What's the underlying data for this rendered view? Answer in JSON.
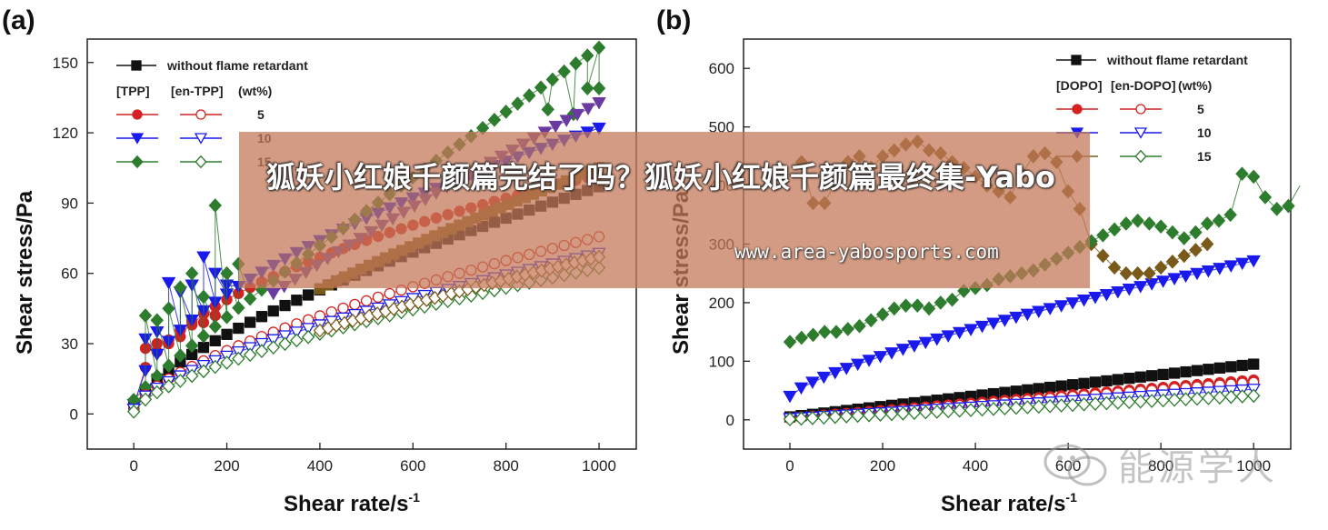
{
  "banner": {
    "title": "狐妖小红娘千颜篇完结了吗？狐妖小红娘千颜篇最终集-Yabo",
    "url": "www.area-yabosports.com"
  },
  "watermark": {
    "text": "能源学人",
    "icon": "wechat-icon"
  },
  "colors": {
    "black": "#111111",
    "red": "#d42020",
    "blue": "#1a1aee",
    "green": "#2e7d2e",
    "brown": "#7a5a1a",
    "banner": "#c47858"
  },
  "chart_data": [
    {
      "type": "scatter",
      "panel": "(a)",
      "xlabel": "Shear rate/s",
      "xlabel_sup": "-1",
      "ylabel": "Shear stress/Pa",
      "xlim": [
        -100,
        1080
      ],
      "ylim": [
        -15,
        160
      ],
      "xticks": [
        0,
        200,
        400,
        600,
        800,
        1000
      ],
      "yticks": [
        0,
        30,
        60,
        90,
        120,
        150
      ],
      "legend": {
        "placement": "top-left",
        "base_label": "without flame retardant",
        "headers": [
          "[TPP]",
          "[en-TPP]",
          "(wt%)"
        ],
        "rows": [
          "5",
          "10",
          "15"
        ]
      },
      "series": [
        {
          "name": "without flame retardant",
          "color": "#111111",
          "marker": "square",
          "fill": true,
          "model": {
            "type": "power",
            "a": 0.8,
            "b": 0.69,
            "y0": 3
          },
          "n": 40
        },
        {
          "name": "TPP 5",
          "color": "#d42020",
          "marker": "circle",
          "fill": true,
          "model": {
            "type": "power",
            "a": 3.6,
            "b": 0.48,
            "y0": 3
          },
          "n": 40,
          "extra": [
            [
              25,
              28
            ],
            [
              50,
              30
            ],
            [
              75,
              30
            ],
            [
              100,
              33
            ],
            [
              125,
              38
            ],
            [
              150,
              39
            ],
            [
              175,
              42
            ]
          ]
        },
        {
          "name": "TPP 10",
          "color": "#1a1aee",
          "marker": "tri-down",
          "fill": true,
          "model": {
            "type": "power",
            "a": 2.3,
            "b": 0.57,
            "y0": 4
          },
          "n": 40,
          "extra": [
            [
              25,
              32
            ],
            [
              50,
              35
            ],
            [
              75,
              56
            ],
            [
              100,
              52
            ],
            [
              125,
              55
            ],
            [
              150,
              67
            ],
            [
              175,
              60
            ],
            [
              200,
              55
            ]
          ]
        },
        {
          "name": "TPP 15",
          "color": "#2e7d2e",
          "marker": "diamond",
          "fill": true,
          "model": {
            "type": "power",
            "a": 0.3,
            "b": 0.9,
            "y0": 6
          },
          "n": 40,
          "extra": [
            [
              25,
              42
            ],
            [
              50,
              40
            ],
            [
              75,
              45
            ],
            [
              100,
              54
            ],
            [
              125,
              60
            ],
            [
              150,
              50
            ],
            [
              175,
              89
            ],
            [
              200,
              60
            ],
            [
              225,
              64
            ],
            [
              890,
              130
            ],
            [
              945,
              128
            ],
            [
              975,
              139
            ],
            [
              1000,
              139
            ]
          ]
        },
        {
          "name": "en-TPP 5",
          "color": "#d42020",
          "marker": "circle",
          "fill": false,
          "model": {
            "type": "power",
            "a": 0.72,
            "b": 0.67,
            "y0": 2
          },
          "n": 40
        },
        {
          "name": "en-TPP 10",
          "color": "#1a1aee",
          "marker": "tri-down",
          "fill": false,
          "model": {
            "type": "power",
            "a": 0.65,
            "b": 0.67,
            "y0": 2
          },
          "n": 40
        },
        {
          "name": "en-TPP 15",
          "color": "#2e7d2e",
          "marker": "diamond",
          "fill": false,
          "model": {
            "type": "power",
            "a": 0.6,
            "b": 0.67,
            "y0": 1
          },
          "n": 40
        },
        {
          "name": "",
          "color": "#7a5a1a",
          "marker": "square",
          "fill": true,
          "model": {
            "type": "power",
            "a": 0.5,
            "b": 0.77,
            "y0": 3
          },
          "n": 34,
          "from": 400
        },
        {
          "name": "",
          "color": "#7a5a1a",
          "marker": "diamond",
          "fill": false,
          "model": {
            "type": "power",
            "a": 0.45,
            "b": 0.72,
            "y0": 2
          },
          "n": 34,
          "from": 400
        },
        {
          "name": "",
          "color": "#6a3aa0",
          "marker": "tri-down",
          "fill": true,
          "model": {
            "type": "power",
            "a": 0.45,
            "b": 0.82,
            "y0": 3
          },
          "n": 30,
          "from": 300
        }
      ]
    },
    {
      "type": "scatter",
      "panel": "(b)",
      "xlabel": "Shear rate/s",
      "xlabel_sup": "-1",
      "ylabel": "Shear stress/Pa",
      "xlim": [
        -100,
        1080
      ],
      "ylim": [
        -50,
        650
      ],
      "xticks": [
        0,
        200,
        400,
        600,
        800,
        1000
      ],
      "yticks": [
        0,
        100,
        200,
        300,
        400,
        500,
        600
      ],
      "legend": {
        "placement": "top-right",
        "base_label": "without flame retardant",
        "headers": [
          "[DOPO]",
          "[en-DOPO]",
          "(wt%)"
        ],
        "rows": [
          "5",
          "10",
          "15"
        ]
      },
      "series": [
        {
          "name": "without flame retardant",
          "color": "#111111",
          "marker": "square",
          "fill": true,
          "model": {
            "type": "linear",
            "a": 0.09,
            "y0": 5
          },
          "n": 41
        },
        {
          "name": "DOPO 5",
          "color": "#d42020",
          "marker": "circle",
          "fill": true,
          "model": {
            "type": "linear",
            "a": 0.065,
            "y0": 3
          },
          "n": 41
        },
        {
          "name": "DOPO 10",
          "color": "#1a1aee",
          "marker": "tri-down",
          "fill": true,
          "model": {
            "type": "power",
            "a": 1.3,
            "b": 0.75,
            "y0": 40
          },
          "n": 41
        },
        {
          "name": "DOPO 15",
          "color": "#7a5a1a",
          "marker": "diamond",
          "fill": true,
          "pts": [
            [
              25,
              440
            ],
            [
              50,
              370
            ],
            [
              75,
              370
            ],
            [
              100,
              410
            ],
            [
              125,
              440
            ],
            [
              150,
              450
            ],
            [
              175,
              430
            ],
            [
              200,
              450
            ],
            [
              225,
              460
            ],
            [
              250,
              470
            ],
            [
              275,
              475
            ],
            [
              300,
              460
            ],
            [
              325,
              455
            ],
            [
              350,
              440
            ],
            [
              375,
              430
            ],
            [
              400,
              415
            ],
            [
              425,
              400
            ],
            [
              450,
              390
            ],
            [
              475,
              380
            ],
            [
              500,
              420
            ],
            [
              525,
              450
            ],
            [
              550,
              455
            ],
            [
              575,
              440
            ],
            [
              600,
              390
            ],
            [
              625,
              360
            ],
            [
              650,
              300
            ],
            [
              675,
              280
            ],
            [
              700,
              260
            ],
            [
              725,
              250
            ],
            [
              750,
              250
            ],
            [
              775,
              250
            ],
            [
              800,
              260
            ],
            [
              825,
              270
            ],
            [
              850,
              280
            ],
            [
              875,
              290
            ],
            [
              900,
              300
            ]
          ]
        },
        {
          "name": "en-DOPO 5",
          "color": "#d42020",
          "marker": "circle",
          "fill": false,
          "model": {
            "type": "linear",
            "a": 0.062,
            "y0": 2
          },
          "n": 41
        },
        {
          "name": "en-DOPO 10",
          "color": "#1a1aee",
          "marker": "tri-down",
          "fill": false,
          "model": {
            "type": "linear",
            "a": 0.05,
            "y0": 2
          },
          "n": 41
        },
        {
          "name": "en-DOPO 15",
          "color": "#2e7d2e",
          "marker": "diamond",
          "fill": false,
          "model": {
            "type": "linear",
            "a": 0.04,
            "y0": 1
          },
          "n": 41
        },
        {
          "name": "",
          "color": "#2e7d2e",
          "marker": "diamond",
          "fill": true,
          "pts": [
            [
              0,
              133
            ],
            [
              25,
              140
            ],
            [
              50,
              145
            ],
            [
              75,
              150
            ],
            [
              100,
              150
            ],
            [
              125,
              155
            ],
            [
              150,
              160
            ],
            [
              175,
              170
            ],
            [
              200,
              180
            ],
            [
              225,
              190
            ],
            [
              250,
              195
            ],
            [
              275,
              195
            ],
            [
              300,
              190
            ],
            [
              325,
              200
            ],
            [
              350,
              205
            ],
            [
              375,
              220
            ],
            [
              400,
              225
            ],
            [
              425,
              230
            ],
            [
              450,
              240
            ],
            [
              475,
              245
            ],
            [
              500,
              250
            ],
            [
              525,
              255
            ],
            [
              550,
              265
            ],
            [
              575,
              275
            ],
            [
              600,
              285
            ],
            [
              625,
              295
            ],
            [
              650,
              305
            ],
            [
              675,
              315
            ],
            [
              700,
              325
            ],
            [
              725,
              335
            ],
            [
              750,
              340
            ],
            [
              775,
              335
            ],
            [
              800,
              330
            ],
            [
              825,
              320
            ],
            [
              850,
              310
            ],
            [
              875,
              320
            ],
            [
              900,
              335
            ],
            [
              925,
              340
            ],
            [
              950,
              350
            ],
            [
              975,
              420
            ],
            [
              1000,
              415
            ],
            [
              1025,
              380
            ],
            [
              1050,
              360
            ],
            [
              1075,
              365
            ],
            [
              1100,
              400
            ]
          ]
        }
      ]
    }
  ]
}
